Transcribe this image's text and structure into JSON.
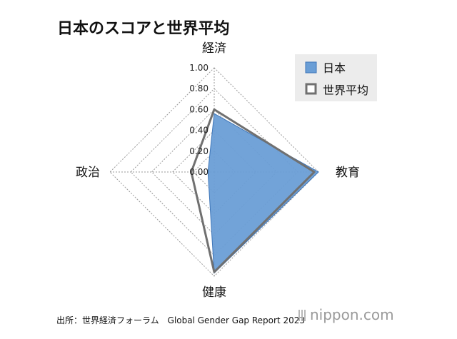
{
  "title": "日本のスコアと世界平均",
  "source": "出所：世界経済フォーラム　Global Gender Gap Report 2023",
  "brand": {
    "name": "nippon",
    "suffix": ".com"
  },
  "colors": {
    "japan_fill": "#6a9ed6",
    "japan_stroke": "#3d75b8",
    "world_stroke": "#707070",
    "grid": "#9a9a9a",
    "legend_bg": "#ececec"
  },
  "chart_data": {
    "type": "radar",
    "title": "日本のスコアと世界平均",
    "axes": [
      "経済",
      "教育",
      "健康",
      "政治"
    ],
    "ticks": [
      "1.00",
      "0.80",
      "0.60",
      "0.40",
      "0.20",
      "0.00"
    ],
    "rlim": [
      0,
      1
    ],
    "grid": true,
    "legend_position": "top-right",
    "series": [
      {
        "name": "日本",
        "values": [
          0.56,
          1.0,
          0.97,
          0.06
        ],
        "style": "filled"
      },
      {
        "name": "世界平均",
        "values": [
          0.6,
          0.96,
          0.96,
          0.22
        ],
        "style": "outline"
      }
    ]
  }
}
